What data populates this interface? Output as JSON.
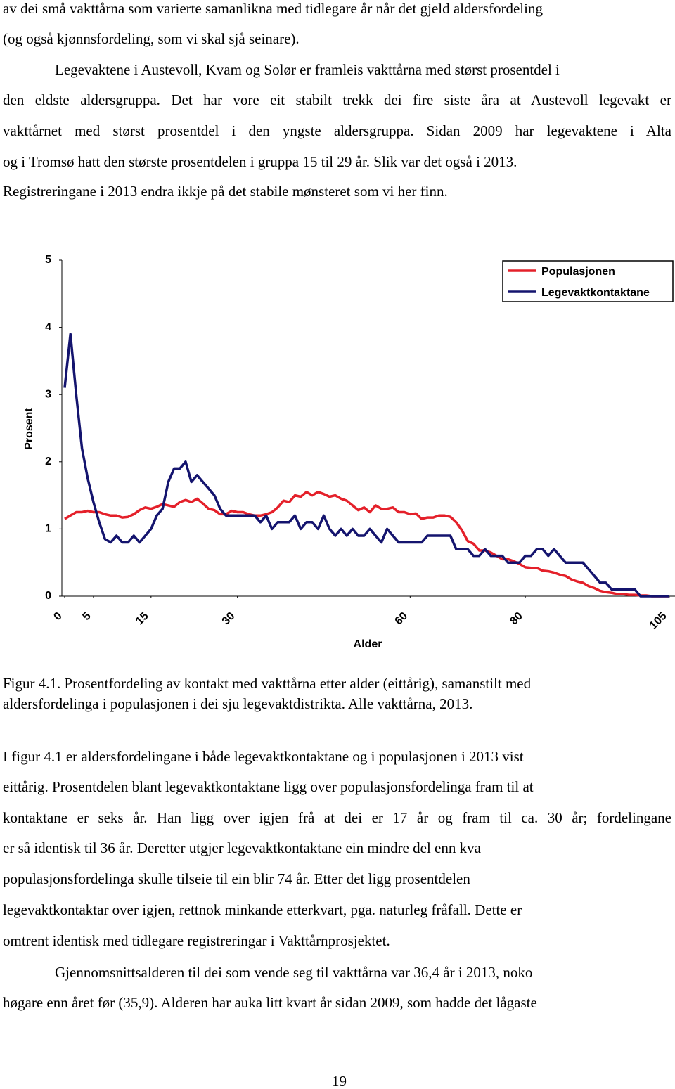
{
  "text_top": [
    "av dei små vakttårna som varierte samanlikna med tidlegare år når det gjeld aldersfordeling",
    "(og også kjønnsfordeling, som vi skal sjå seinare).",
    "Legevaktene i Austevoll, Kvam og Solør er framleis vakttårna med størst prosentdel i",
    "den eldste aldersgruppa. Det har vore eit stabilt trekk dei fire siste åra at Austevoll legevakt er",
    "vakttårnet med størst prosentdel i den yngste aldersgruppa. Sidan 2009 har legevaktene i Alta",
    "og i Tromsø hatt den største prosentdelen i gruppa 15 til 29 år. Slik var det også i 2013.",
    "Registreringane i 2013 endra ikkje på det stabile mønsteret som vi her finn."
  ],
  "chart_data": {
    "type": "line",
    "x_label": "Alder",
    "y_label": "Prosent",
    "x": [
      0,
      1,
      2,
      3,
      4,
      5,
      6,
      7,
      8,
      9,
      10,
      11,
      12,
      13,
      14,
      15,
      16,
      17,
      18,
      19,
      20,
      21,
      22,
      23,
      24,
      25,
      26,
      27,
      28,
      29,
      30,
      31,
      32,
      33,
      34,
      35,
      36,
      37,
      38,
      39,
      40,
      41,
      42,
      43,
      44,
      45,
      46,
      47,
      48,
      49,
      50,
      51,
      52,
      53,
      54,
      55,
      56,
      57,
      58,
      59,
      60,
      61,
      62,
      63,
      64,
      65,
      66,
      67,
      68,
      69,
      70,
      71,
      72,
      73,
      74,
      75,
      76,
      77,
      78,
      79,
      80,
      81,
      82,
      83,
      84,
      85,
      86,
      87,
      88,
      89,
      90,
      91,
      92,
      93,
      94,
      95,
      96,
      97,
      98,
      99,
      100,
      101,
      102,
      103,
      104,
      105
    ],
    "series": [
      {
        "name": "Populasjonen",
        "color": "#e4202a",
        "values": [
          1.15,
          1.2,
          1.25,
          1.25,
          1.27,
          1.25,
          1.25,
          1.22,
          1.2,
          1.2,
          1.17,
          1.18,
          1.22,
          1.28,
          1.32,
          1.3,
          1.33,
          1.37,
          1.35,
          1.33,
          1.4,
          1.43,
          1.4,
          1.45,
          1.38,
          1.3,
          1.28,
          1.22,
          1.22,
          1.27,
          1.25,
          1.25,
          1.22,
          1.2,
          1.2,
          1.22,
          1.25,
          1.32,
          1.42,
          1.4,
          1.5,
          1.48,
          1.55,
          1.5,
          1.55,
          1.52,
          1.48,
          1.5,
          1.45,
          1.42,
          1.35,
          1.28,
          1.32,
          1.25,
          1.35,
          1.3,
          1.3,
          1.32,
          1.25,
          1.25,
          1.22,
          1.23,
          1.15,
          1.17,
          1.17,
          1.2,
          1.2,
          1.18,
          1.1,
          0.98,
          0.82,
          0.78,
          0.68,
          0.68,
          0.65,
          0.6,
          0.55,
          0.55,
          0.52,
          0.48,
          0.43,
          0.42,
          0.42,
          0.38,
          0.37,
          0.35,
          0.32,
          0.3,
          0.25,
          0.22,
          0.2,
          0.15,
          0.12,
          0.08,
          0.06,
          0.05,
          0.03,
          0.03,
          0.02,
          0.02,
          0.01,
          0.01,
          0,
          0,
          0,
          0
        ]
      },
      {
        "name": "Legevaktkontaktane",
        "color": "#14146e",
        "values": [
          3.1,
          3.9,
          3.0,
          2.2,
          1.75,
          1.4,
          1.1,
          0.85,
          0.8,
          0.9,
          0.8,
          0.8,
          0.9,
          0.8,
          0.9,
          1.0,
          1.2,
          1.3,
          1.7,
          1.9,
          1.9,
          2.0,
          1.7,
          1.8,
          1.7,
          1.6,
          1.5,
          1.3,
          1.2,
          1.2,
          1.2,
          1.2,
          1.2,
          1.2,
          1.1,
          1.2,
          1.0,
          1.1,
          1.1,
          1.1,
          1.2,
          1.0,
          1.1,
          1.1,
          1.0,
          1.2,
          1.0,
          0.9,
          1.0,
          0.9,
          1.0,
          0.9,
          0.9,
          1.0,
          0.9,
          0.8,
          1.0,
          0.9,
          0.8,
          0.8,
          0.8,
          0.8,
          0.8,
          0.9,
          0.9,
          0.9,
          0.9,
          0.9,
          0.7,
          0.7,
          0.7,
          0.6,
          0.6,
          0.7,
          0.6,
          0.6,
          0.6,
          0.5,
          0.5,
          0.5,
          0.6,
          0.6,
          0.7,
          0.7,
          0.6,
          0.7,
          0.6,
          0.5,
          0.5,
          0.5,
          0.5,
          0.4,
          0.3,
          0.2,
          0.2,
          0.1,
          0.1,
          0.1,
          0.1,
          0.1,
          0,
          0,
          0,
          0,
          0,
          0
        ]
      }
    ],
    "xlim": [
      0,
      106
    ],
    "xticks": [
      0,
      5,
      15,
      30,
      60,
      80,
      105
    ],
    "ylim": [
      0,
      5
    ],
    "yticks": [
      0,
      1,
      2,
      3,
      4,
      5
    ],
    "grid": false,
    "legend": "top-right"
  },
  "caption": [
    "Figur 4.1. Prosentfordeling av kontakt med vakttårna etter alder (eittårig), samanstilt med",
    "aldersfordelinga i populasjonen i dei sju legevaktdistrikta. Alle vakttårna, 2013."
  ],
  "text_bottom": [
    "I figur 4.1 er aldersfordelingane i både legevaktkontaktane og i populasjonen i 2013 vist",
    "eittårig. Prosentdelen blant legevaktkontaktane ligg over populasjonsfordelinga fram til at",
    "kontaktane er seks år. Han ligg over igjen frå at dei er 17 år og fram til ca. 30 år; fordelingane",
    "er så identisk til 36 år. Deretter utgjer legevaktkontaktane ein mindre del enn kva",
    "populasjonsfordelinga skulle tilseie til ein blir 74 år. Etter det ligg prosentdelen",
    "legevaktkontaktar over igjen, rettnok minkande etterkvart, pga. naturleg fråfall. Dette er",
    "omtrent identisk med tidlegare registreringar i Vakttårnprosjektet.",
    "Gjennomsnittsalderen til dei som vende seg til vakttårna var 36,4 år i 2013, noko",
    "høgare enn året før (35,9). Alderen har auka litt kvart år sidan 2009, som hadde det lågaste"
  ],
  "page_number": "19"
}
